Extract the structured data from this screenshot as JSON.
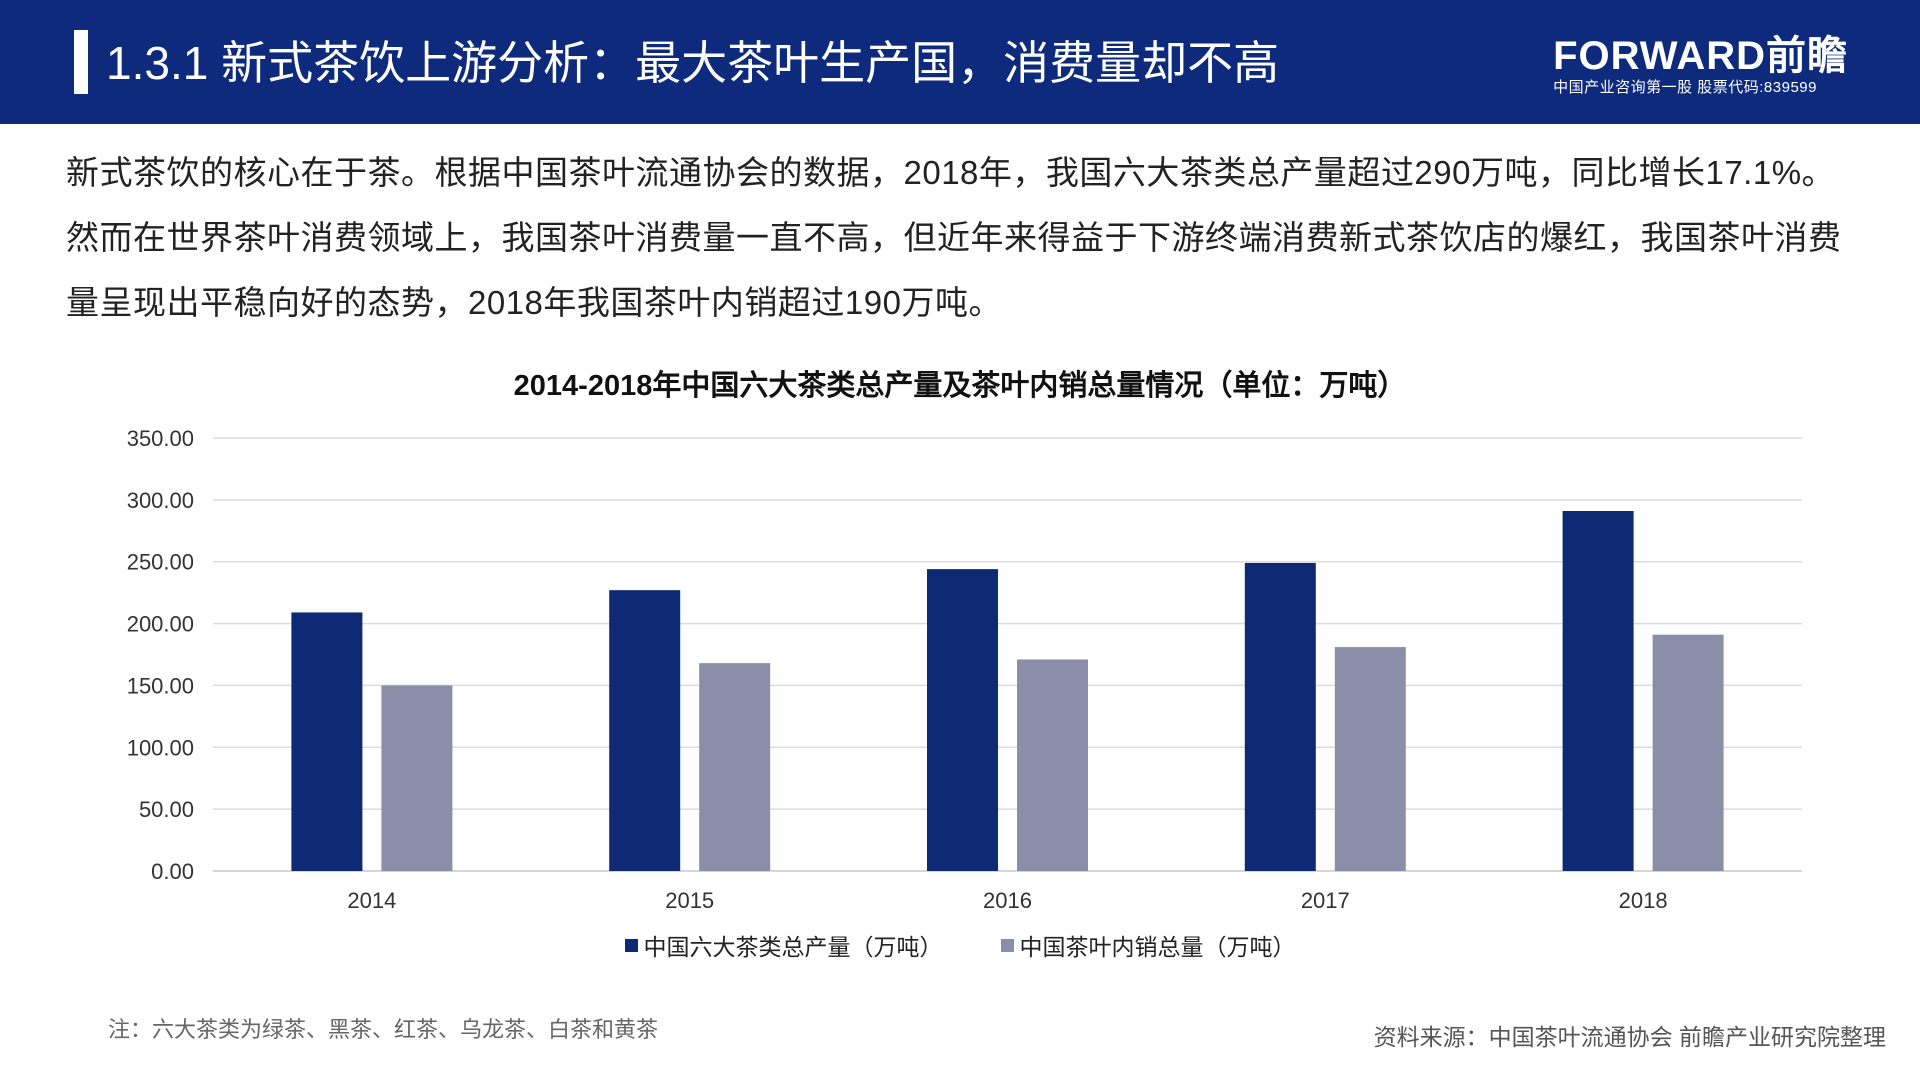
{
  "header": {
    "title": "1.3.1 新式茶饮上游分析：最大茶叶生产国，消费量却不高",
    "logo_text": "FORWARD前瞻",
    "logo_subtitle": "中国产业咨询第一股  股票代码:839599"
  },
  "intro_text": "新式茶饮的核心在于茶。根据中国茶叶流通协会的数据，2018年，我国六大茶类总产量超过290万吨，同比增长17.1%。然而在世界茶叶消费领域上，我国茶叶消费量一直不高，但近年来得益于下游终端消费新式茶饮店的爆红，我国茶叶消费量呈现出平稳向好的态势，2018年我国茶叶内销超过190万吨。",
  "chart_data": {
    "type": "bar",
    "title": "2014-2018年中国六大茶类总产量及茶叶内销总量情况（单位：万吨）",
    "categories": [
      "2014",
      "2015",
      "2016",
      "2017",
      "2018"
    ],
    "series": [
      {
        "name": "中国六大茶类总产量（万吨）",
        "values": [
          209,
          227,
          244,
          249,
          291
        ],
        "color": "#0f2a74"
      },
      {
        "name": "中国茶叶内销总量（万吨）",
        "values": [
          150,
          168,
          171,
          181,
          191
        ],
        "color": "#8a8ea9"
      }
    ],
    "ylim": [
      0,
      350
    ],
    "yticks": [
      "0.00",
      "50.00",
      "100.00",
      "150.00",
      "200.00",
      "250.00",
      "300.00",
      "350.00"
    ],
    "grid": true,
    "legend": "bottom-center"
  },
  "note": "注：六大茶类为绿茶、黑茶、红茶、乌龙茶、白茶和黄茶",
  "source": "资料来源：中国茶叶流通协会 前瞻产业研究院整理"
}
